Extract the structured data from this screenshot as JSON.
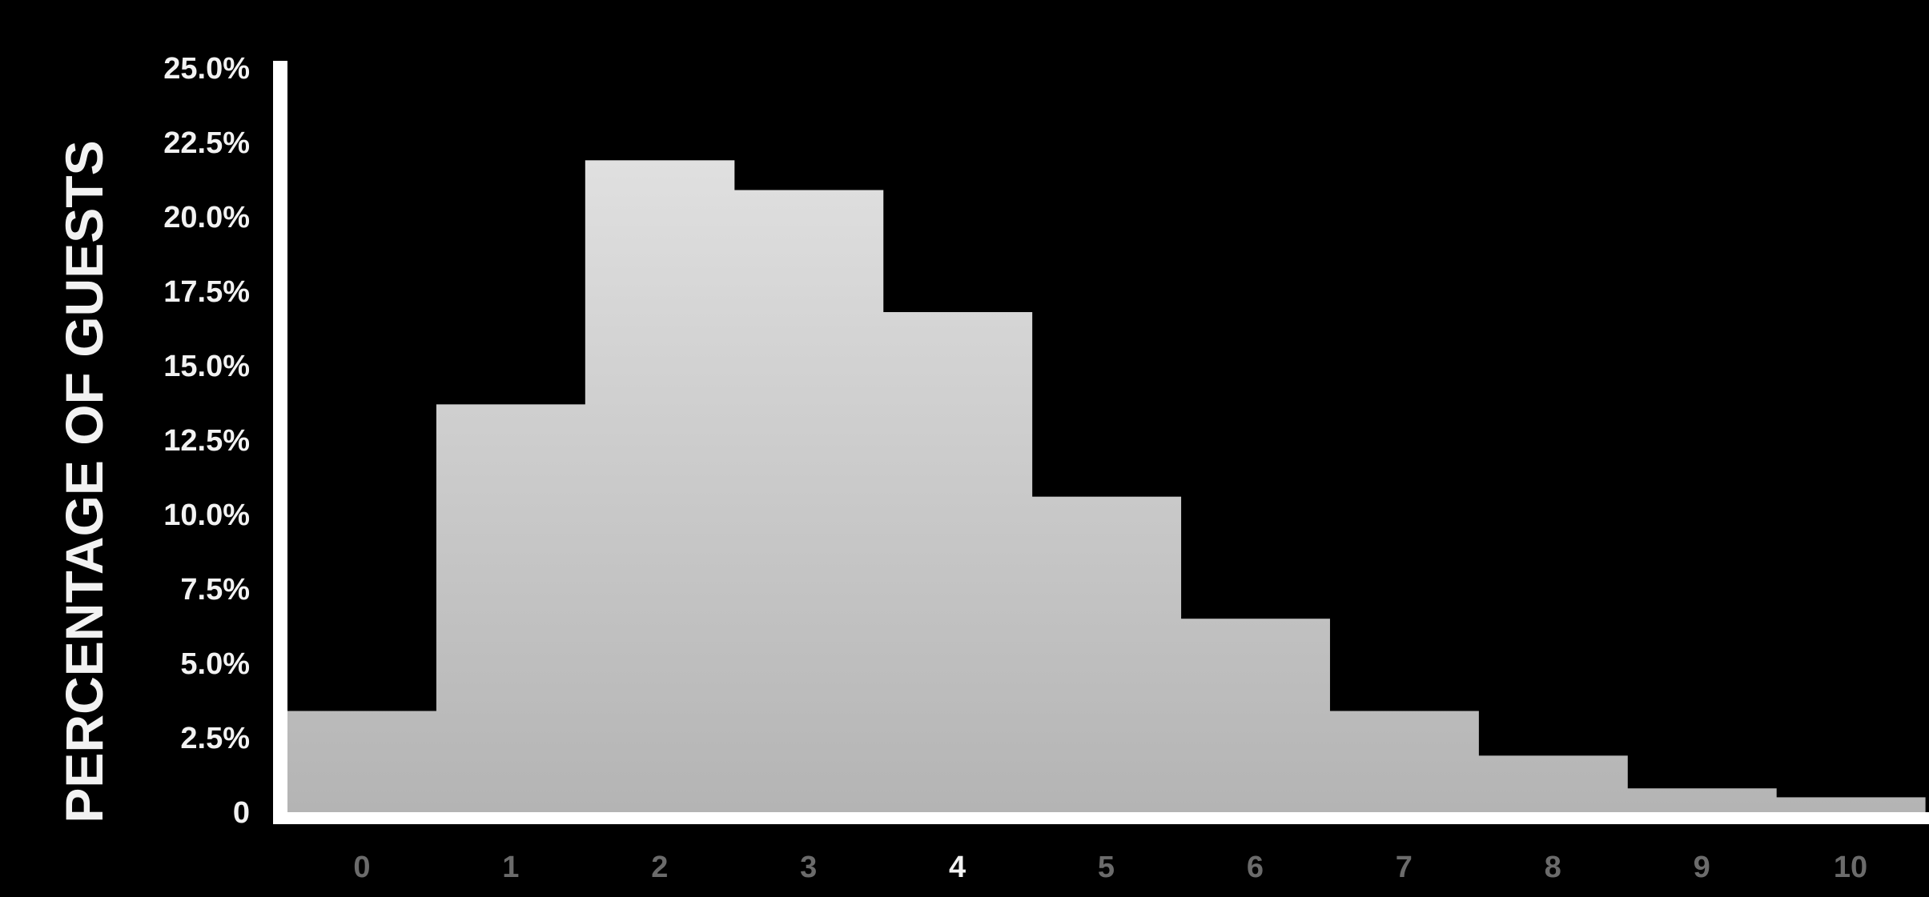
{
  "chart_data": {
    "type": "bar",
    "title": "",
    "xlabel": "",
    "ylabel": "PERCENTAGE OF GUESTS",
    "categories": [
      "0",
      "1",
      "2",
      "3",
      "4",
      "5",
      "6",
      "7",
      "8",
      "9",
      "10"
    ],
    "values": [
      3.4,
      13.7,
      21.9,
      20.9,
      16.8,
      10.6,
      6.5,
      3.4,
      1.9,
      0.8,
      0.5
    ],
    "highlighted_category": "4",
    "ylim": [
      0,
      25
    ],
    "yticks": [
      "0",
      "2.5%",
      "5.0%",
      "7.5%",
      "10.0%",
      "12.5%",
      "15.0%",
      "17.5%",
      "20.0%",
      "22.5%",
      "25.0%"
    ],
    "grid": false,
    "legend": "none",
    "colors": {
      "background": "#000000",
      "bar_top": "#e6e6e6",
      "bar_bottom": "#b4b4b4",
      "axis": "#ffffff",
      "tick_label": "#f2f2f2",
      "x_tick_label": "#6b6b6b",
      "x_tick_highlight": "#f2f2f2"
    }
  }
}
